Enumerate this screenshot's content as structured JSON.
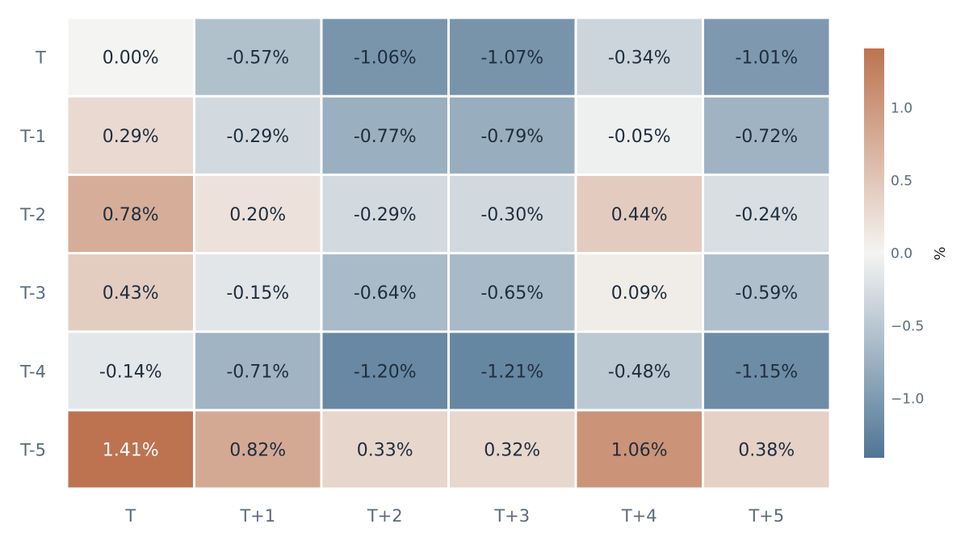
{
  "chart_data": {
    "type": "heatmap",
    "rows": [
      "T",
      "T-1",
      "T-2",
      "T-3",
      "T-4",
      "T-5"
    ],
    "columns": [
      "T",
      "T+1",
      "T+2",
      "T+3",
      "T+4",
      "T+5"
    ],
    "values": [
      [
        0.0,
        -0.57,
        -1.06,
        -1.07,
        -0.34,
        -1.01
      ],
      [
        0.29,
        -0.29,
        -0.77,
        -0.79,
        -0.05,
        -0.72
      ],
      [
        0.78,
        0.2,
        -0.29,
        -0.3,
        0.44,
        -0.24
      ],
      [
        0.43,
        -0.15,
        -0.64,
        -0.65,
        0.09,
        -0.59
      ],
      [
        -0.14,
        -0.71,
        -1.2,
        -1.21,
        -0.48,
        -1.15
      ],
      [
        1.41,
        0.82,
        0.33,
        0.32,
        1.06,
        0.38
      ]
    ],
    "cell_labels": [
      [
        "0.00%",
        "-0.57%",
        "-1.06%",
        "-1.07%",
        "-0.34%",
        "-1.01%"
      ],
      [
        "0.29%",
        "-0.29%",
        "-0.77%",
        "-0.79%",
        "-0.05%",
        "-0.72%"
      ],
      [
        "0.78%",
        "0.20%",
        "-0.29%",
        "-0.30%",
        "0.44%",
        "-0.24%"
      ],
      [
        "0.43%",
        "-0.15%",
        "-0.64%",
        "-0.65%",
        "0.09%",
        "-0.59%"
      ],
      [
        "-0.14%",
        "-0.71%",
        "-1.20%",
        "-1.21%",
        "-0.48%",
        "-1.15%"
      ],
      [
        "1.41%",
        "0.82%",
        "0.33%",
        "0.32%",
        "1.06%",
        "0.38%"
      ]
    ],
    "colorscale": {
      "min": -1.41,
      "max": 1.41,
      "negative": "#4f7595",
      "neutral": "#f4f4f2",
      "positive": "#bd7350"
    },
    "colorbar": {
      "title": "%",
      "ticks": [
        1.0,
        0.5,
        0.0,
        -0.5,
        -1.0
      ],
      "tick_labels": [
        "1.0",
        "0.5",
        "0.0",
        "−0.5",
        "−1.0"
      ]
    },
    "colors": {
      "text_dark": "#1f2d3d",
      "text_light": "#ffffff",
      "tick_text": "#5a6b7f",
      "grid_gap": "#ffffff"
    }
  }
}
